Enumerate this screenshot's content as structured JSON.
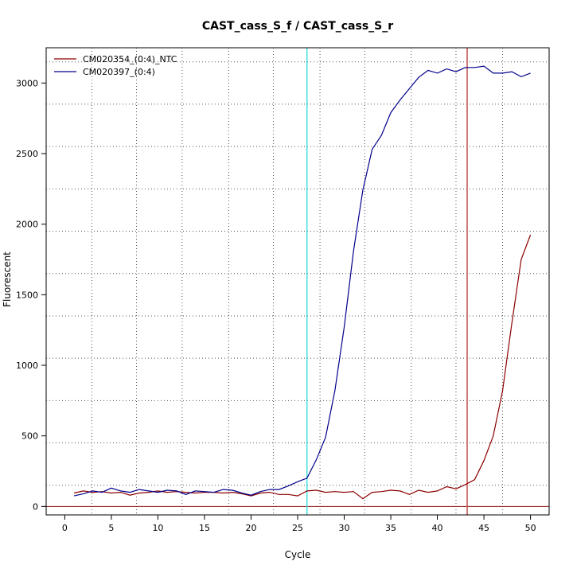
{
  "chart_data": {
    "type": "line",
    "title": "CAST_cass_S_f / CAST_cass_S_r",
    "xlabel": "Cycle",
    "ylabel": "Fluorescent",
    "xlim": [
      -2,
      52
    ],
    "ylim": [
      -60,
      3250
    ],
    "x_ticks": [
      0,
      5,
      10,
      15,
      20,
      25,
      30,
      35,
      40,
      45,
      50
    ],
    "y_ticks": [
      0,
      500,
      1000,
      1500,
      2000,
      2500,
      3000
    ],
    "grid_x": [
      2.9,
      7.7,
      12.6,
      17.6,
      22.4,
      27.4,
      32.2,
      37.2,
      42.0,
      47.0
    ],
    "grid_y": [
      150,
      450,
      750,
      1050,
      1350,
      1650,
      1950,
      2250,
      2550,
      2850,
      3150
    ],
    "legend_position": "top-left",
    "threshold_lines": {
      "horizontal_y": 0,
      "vertical": [
        {
          "x": 26.0,
          "color": "#40e0e0"
        },
        {
          "x": 43.2,
          "color": "#c0504d"
        }
      ]
    },
    "x": [
      1,
      2,
      3,
      4,
      5,
      6,
      7,
      8,
      9,
      10,
      11,
      12,
      13,
      14,
      15,
      16,
      17,
      18,
      19,
      20,
      21,
      22,
      23,
      24,
      25,
      26,
      27,
      28,
      29,
      30,
      31,
      32,
      33,
      34,
      35,
      36,
      37,
      38,
      39,
      40,
      41,
      42,
      43,
      44,
      45,
      46,
      47,
      48,
      49,
      50
    ],
    "series": [
      {
        "name": "CM020354_(0:4)_NTC",
        "color": "#8b0000",
        "values": [
          95,
          110,
          100,
          105,
          95,
          100,
          80,
          95,
          100,
          110,
          100,
          105,
          100,
          95,
          100,
          100,
          95,
          100,
          90,
          75,
          95,
          100,
          85,
          85,
          75,
          110,
          115,
          100,
          105,
          100,
          105,
          55,
          100,
          105,
          115,
          110,
          85,
          115,
          100,
          110,
          140,
          125,
          155,
          190,
          325,
          500,
          820,
          1300,
          1750,
          1925
        ]
      },
      {
        "name": "CM020397_(0:4)",
        "color": "#00008b",
        "values": [
          75,
          90,
          110,
          100,
          130,
          110,
          100,
          120,
          110,
          100,
          115,
          110,
          85,
          110,
          105,
          100,
          120,
          115,
          95,
          80,
          105,
          120,
          120,
          145,
          175,
          200,
          330,
          490,
          820,
          1270,
          1810,
          2240,
          2530,
          2630,
          2790,
          2880,
          2960,
          3040,
          3090,
          3070,
          3100,
          3080,
          3110,
          3110,
          3120,
          3070,
          3070,
          3080,
          3045,
          3070
        ]
      }
    ]
  }
}
